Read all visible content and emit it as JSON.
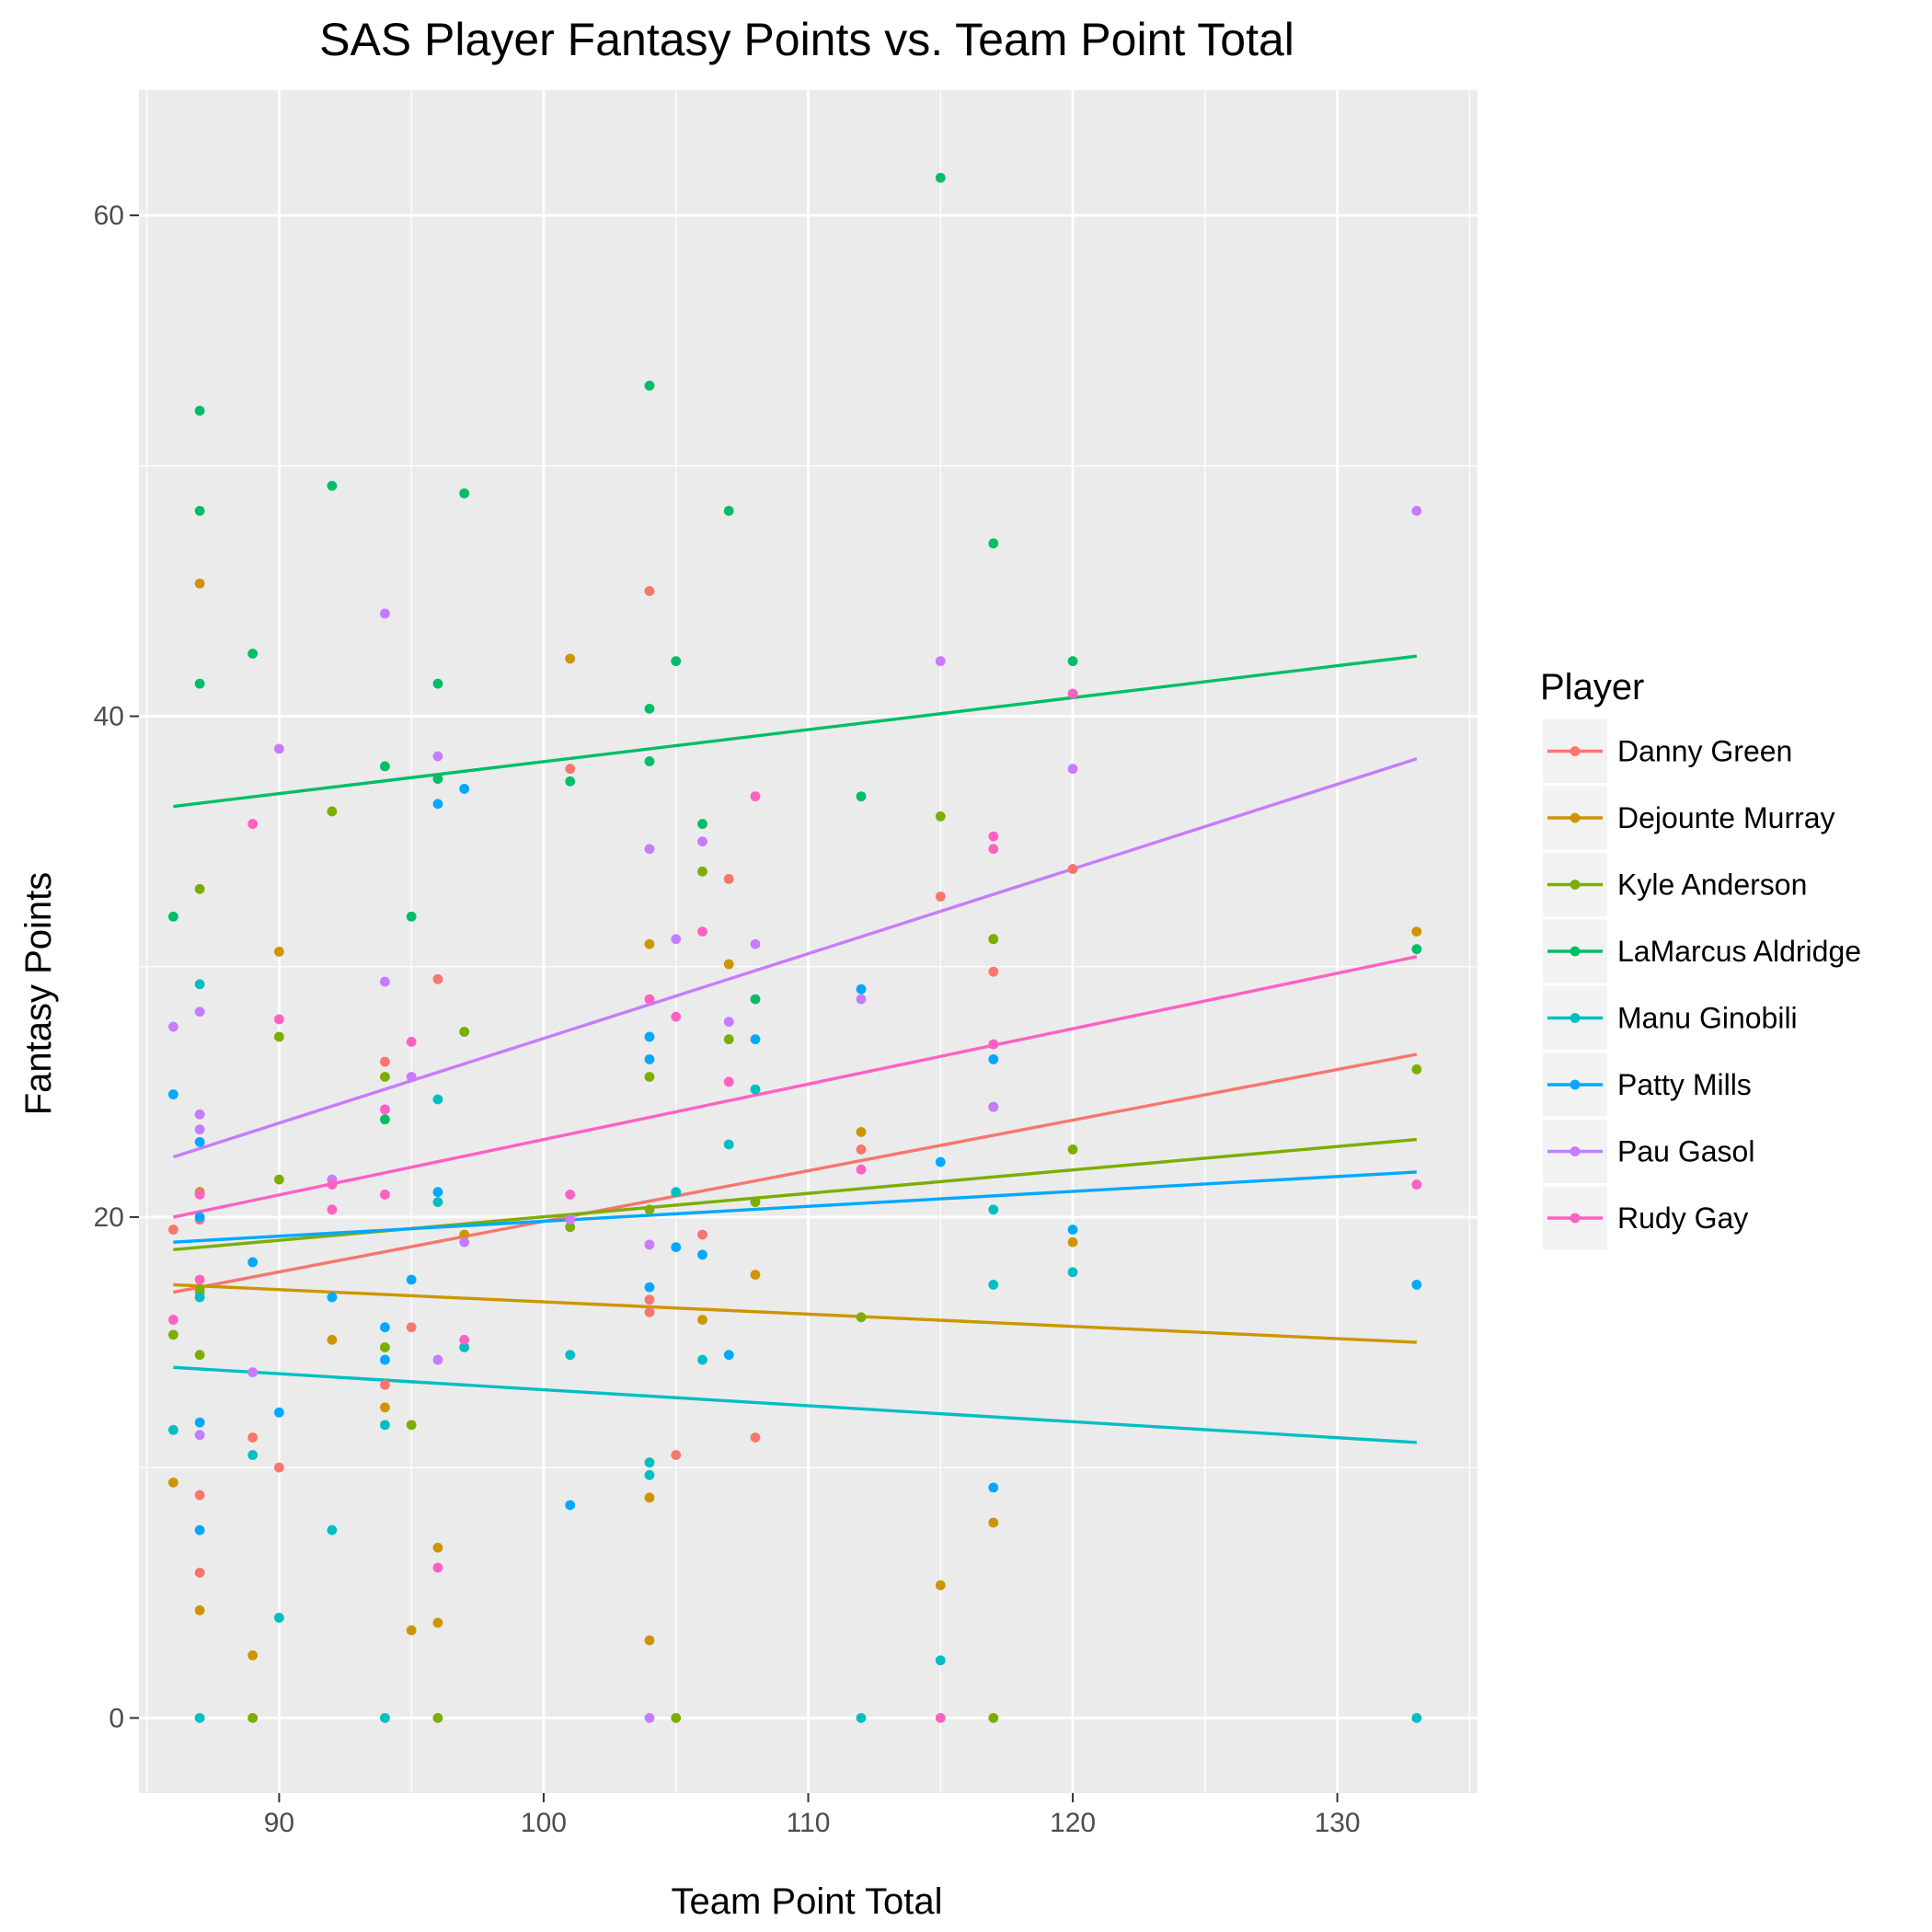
{
  "chart_data": {
    "type": "scatter",
    "title": "SAS Player Fantasy Points vs. Team Point Total",
    "xlabel": "Team Point Total",
    "ylabel": "Fantasy Points",
    "xlim": [
      84.7,
      135.3
    ],
    "ylim": [
      -3.0,
      65.0
    ],
    "xticks": [
      90,
      100,
      110,
      120,
      130
    ],
    "yticks": [
      0,
      20,
      40,
      60
    ],
    "grid": true,
    "legend": {
      "title": "Player",
      "position": "right"
    },
    "series": [
      {
        "name": "Danny Green",
        "color": "#F8766D",
        "trend": [
          [
            86,
            17.0
          ],
          [
            133,
            26.5
          ]
        ],
        "points": [
          [
            86,
            19.5
          ],
          [
            87,
            19.9
          ],
          [
            87,
            8.9
          ],
          [
            87,
            5.8
          ],
          [
            87,
            17.0
          ],
          [
            89,
            11.2
          ],
          [
            90,
            10.0
          ],
          [
            94,
            13.3
          ],
          [
            94,
            26.2
          ],
          [
            95,
            15.6
          ],
          [
            96,
            29.5
          ],
          [
            101,
            37.9
          ],
          [
            104,
            45.0
          ],
          [
            104,
            16.7
          ],
          [
            104,
            16.2
          ],
          [
            105,
            10.5
          ],
          [
            106,
            19.3
          ],
          [
            107,
            33.5
          ],
          [
            108,
            11.2
          ],
          [
            112,
            22.7
          ],
          [
            115,
            32.8
          ],
          [
            117,
            31.1
          ],
          [
            117,
            29.8
          ],
          [
            120,
            33.9
          ],
          [
            120,
            40.9
          ]
        ]
      },
      {
        "name": "Dejounte Murray",
        "color": "#CD9600",
        "trend": [
          [
            86,
            17.3
          ],
          [
            133,
            15.0
          ]
        ],
        "points": [
          [
            86,
            9.4
          ],
          [
            87,
            21.0
          ],
          [
            87,
            45.3
          ],
          [
            87,
            4.3
          ],
          [
            89,
            2.5
          ],
          [
            90,
            30.6
          ],
          [
            92,
            15.1
          ],
          [
            94,
            12.4
          ],
          [
            95,
            3.5
          ],
          [
            96,
            6.8
          ],
          [
            96,
            3.8
          ],
          [
            97,
            19.3
          ],
          [
            101,
            42.3
          ],
          [
            104,
            30.9
          ],
          [
            104,
            8.8
          ],
          [
            104,
            3.1
          ],
          [
            106,
            15.9
          ],
          [
            107,
            30.1
          ],
          [
            108,
            17.7
          ],
          [
            112,
            23.4
          ],
          [
            115,
            5.3
          ],
          [
            117,
            7.8
          ],
          [
            120,
            19.0
          ],
          [
            133,
            31.4
          ]
        ]
      },
      {
        "name": "Kyle Anderson",
        "color": "#7CAE00",
        "trend": [
          [
            86,
            18.7
          ],
          [
            133,
            23.1
          ]
        ],
        "points": [
          [
            86,
            15.3
          ],
          [
            87,
            33.1
          ],
          [
            87,
            14.5
          ],
          [
            87,
            17.1
          ],
          [
            89,
            0
          ],
          [
            90,
            27.2
          ],
          [
            90,
            21.5
          ],
          [
            92,
            36.2
          ],
          [
            94,
            25.6
          ],
          [
            94,
            14.8
          ],
          [
            95,
            11.7
          ],
          [
            96,
            0
          ],
          [
            97,
            27.4
          ],
          [
            101,
            19.6
          ],
          [
            104,
            25.6
          ],
          [
            104,
            20.3
          ],
          [
            105,
            0
          ],
          [
            106,
            33.8
          ],
          [
            107,
            27.1
          ],
          [
            108,
            20.6
          ],
          [
            112,
            16.0
          ],
          [
            115,
            36.0
          ],
          [
            117,
            31.1
          ],
          [
            117,
            24.4
          ],
          [
            117,
            0
          ],
          [
            120,
            22.7
          ],
          [
            133,
            25.9
          ]
        ]
      },
      {
        "name": "LaMarcus Aldridge",
        "color": "#00BE67",
        "trend": [
          [
            86,
            36.4
          ],
          [
            133,
            42.4
          ]
        ],
        "points": [
          [
            86,
            32.0
          ],
          [
            87,
            52.2
          ],
          [
            87,
            48.2
          ],
          [
            87,
            41.3
          ],
          [
            89,
            42.5
          ],
          [
            92,
            49.2
          ],
          [
            94,
            38.0
          ],
          [
            94,
            23.9
          ],
          [
            95,
            32.0
          ],
          [
            96,
            41.3
          ],
          [
            96,
            37.5
          ],
          [
            97,
            48.9
          ],
          [
            101,
            37.4
          ],
          [
            104,
            53.2
          ],
          [
            104,
            40.3
          ],
          [
            104,
            38.2
          ],
          [
            105,
            42.2
          ],
          [
            106,
            35.7
          ],
          [
            107,
            48.2
          ],
          [
            108,
            28.7
          ],
          [
            112,
            36.8
          ],
          [
            115,
            61.5
          ],
          [
            117,
            46.9
          ],
          [
            117,
            24.4
          ],
          [
            120,
            42.2
          ],
          [
            133,
            30.7
          ]
        ]
      },
      {
        "name": "Manu Ginobili",
        "color": "#00BFC4",
        "trend": [
          [
            86,
            14.0
          ],
          [
            133,
            11.0
          ]
        ],
        "points": [
          [
            86,
            11.5
          ],
          [
            87,
            29.3
          ],
          [
            87,
            16.8
          ],
          [
            87,
            0
          ],
          [
            89,
            10.5
          ],
          [
            90,
            4.0
          ],
          [
            92,
            7.5
          ],
          [
            94,
            11.7
          ],
          [
            94,
            0
          ],
          [
            96,
            20.6
          ],
          [
            96,
            24.7
          ],
          [
            97,
            14.8
          ],
          [
            101,
            14.5
          ],
          [
            104,
            10.2
          ],
          [
            104,
            9.7
          ],
          [
            105,
            21.0
          ],
          [
            106,
            14.3
          ],
          [
            107,
            22.9
          ],
          [
            108,
            25.1
          ],
          [
            112,
            0
          ],
          [
            115,
            2.3
          ],
          [
            117,
            20.3
          ],
          [
            117,
            17.3
          ],
          [
            120,
            17.8
          ],
          [
            133,
            0
          ]
        ]
      },
      {
        "name": "Patty Mills",
        "color": "#00A9FF",
        "trend": [
          [
            86,
            19.0
          ],
          [
            133,
            21.8
          ]
        ],
        "points": [
          [
            86,
            24.9
          ],
          [
            87,
            23.0
          ],
          [
            87,
            20.0
          ],
          [
            87,
            11.8
          ],
          [
            87,
            7.5
          ],
          [
            89,
            18.2
          ],
          [
            90,
            12.2
          ],
          [
            92,
            16.8
          ],
          [
            94,
            15.6
          ],
          [
            94,
            14.3
          ],
          [
            95,
            17.5
          ],
          [
            96,
            36.5
          ],
          [
            96,
            21.0
          ],
          [
            97,
            37.1
          ],
          [
            101,
            8.5
          ],
          [
            104,
            27.2
          ],
          [
            104,
            26.3
          ],
          [
            104,
            17.2
          ],
          [
            105,
            18.8
          ],
          [
            106,
            18.5
          ],
          [
            107,
            14.5
          ],
          [
            108,
            27.1
          ],
          [
            112,
            29.1
          ],
          [
            115,
            22.2
          ],
          [
            117,
            26.3
          ],
          [
            117,
            9.2
          ],
          [
            120,
            19.5
          ],
          [
            133,
            17.3
          ]
        ]
      },
      {
        "name": "Pau Gasol",
        "color": "#C77CFF",
        "trend": [
          [
            86,
            22.4
          ],
          [
            133,
            38.3
          ]
        ],
        "points": [
          [
            86,
            27.6
          ],
          [
            87,
            28.2
          ],
          [
            87,
            23.5
          ],
          [
            87,
            24.1
          ],
          [
            87,
            11.3
          ],
          [
            89,
            13.8
          ],
          [
            90,
            38.7
          ],
          [
            92,
            21.5
          ],
          [
            94,
            29.4
          ],
          [
            94,
            44.1
          ],
          [
            95,
            25.6
          ],
          [
            96,
            38.4
          ],
          [
            96,
            14.3
          ],
          [
            97,
            19.0
          ],
          [
            101,
            19.9
          ],
          [
            104,
            34.7
          ],
          [
            104,
            18.9
          ],
          [
            104,
            0
          ],
          [
            105,
            31.1
          ],
          [
            106,
            35.0
          ],
          [
            107,
            27.8
          ],
          [
            108,
            30.9
          ],
          [
            112,
            28.7
          ],
          [
            115,
            42.2
          ],
          [
            117,
            24.4
          ],
          [
            117,
            26.9
          ],
          [
            120,
            37.9
          ],
          [
            133,
            48.2
          ]
        ]
      },
      {
        "name": "Rudy Gay",
        "color": "#FF61C3",
        "trend": [
          [
            86,
            20.0
          ],
          [
            133,
            30.4
          ]
        ],
        "points": [
          [
            86,
            15.9
          ],
          [
            87,
            20.9
          ],
          [
            87,
            17.5
          ],
          [
            89,
            35.7
          ],
          [
            90,
            27.9
          ],
          [
            92,
            21.3
          ],
          [
            92,
            20.3
          ],
          [
            94,
            20.9
          ],
          [
            94,
            24.3
          ],
          [
            95,
            27.0
          ],
          [
            96,
            6.0
          ],
          [
            97,
            15.1
          ],
          [
            101,
            20.9
          ],
          [
            104,
            28.7
          ],
          [
            105,
            28.0
          ],
          [
            106,
            31.4
          ],
          [
            107,
            25.4
          ],
          [
            108,
            36.8
          ],
          [
            112,
            21.9
          ],
          [
            115,
            0
          ],
          [
            117,
            35.2
          ],
          [
            117,
            34.7
          ],
          [
            117,
            26.9
          ],
          [
            120,
            40.9
          ],
          [
            133,
            21.3
          ]
        ]
      }
    ]
  }
}
